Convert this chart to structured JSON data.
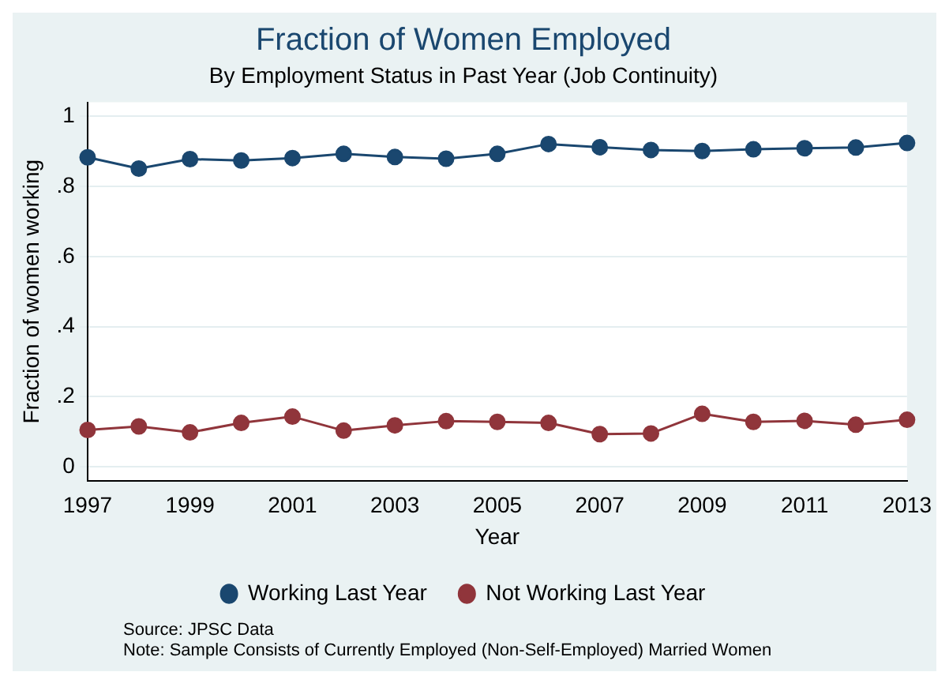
{
  "chart_data": {
    "type": "line",
    "title": "Fraction of Women Employed",
    "subtitle": "By Employment Status in Past Year (Job Continuity)",
    "xlabel": "Year",
    "ylabel": "Fraction of women working",
    "x": [
      1997,
      1998,
      1999,
      2000,
      2001,
      2002,
      2003,
      2004,
      2005,
      2006,
      2007,
      2008,
      2009,
      2010,
      2011,
      2012,
      2013
    ],
    "series": [
      {
        "name": "Working Last Year",
        "color": "#1a476f",
        "values": [
          0.883,
          0.851,
          0.878,
          0.874,
          0.881,
          0.893,
          0.884,
          0.879,
          0.893,
          0.921,
          0.912,
          0.904,
          0.901,
          0.906,
          0.909,
          0.911,
          0.924
        ]
      },
      {
        "name": "Not Working Last Year",
        "color": "#90353b",
        "values": [
          0.105,
          0.115,
          0.098,
          0.125,
          0.143,
          0.103,
          0.118,
          0.13,
          0.128,
          0.125,
          0.093,
          0.095,
          0.151,
          0.128,
          0.131,
          0.12,
          0.134
        ]
      }
    ],
    "xlim": [
      1997,
      2013
    ],
    "xticks": [
      1997,
      1999,
      2001,
      2003,
      2005,
      2007,
      2009,
      2011,
      2013
    ],
    "ylim": [
      -0.04,
      1.04
    ],
    "yticks": [
      {
        "value": 0,
        "label": "0"
      },
      {
        "value": 0.2,
        "label": ".2"
      },
      {
        "value": 0.4,
        "label": ".4"
      },
      {
        "value": 0.6,
        "label": ".6"
      },
      {
        "value": 0.8,
        "label": ".8"
      },
      {
        "value": 1,
        "label": "1"
      }
    ],
    "grid": "y",
    "legend": "bottom",
    "marker": "circle",
    "line_style": "solid",
    "annotations": [
      "Source: JPSC Data",
      "Note: Sample Consists of Currently Employed (Non-Self-Employed) Married Women"
    ]
  }
}
